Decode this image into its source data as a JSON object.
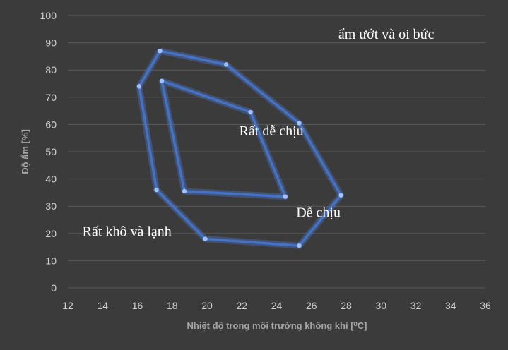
{
  "chart_data": {
    "type": "scatter",
    "xlabel": "Nhiệt độ trong môi trường không khí [⁰C]",
    "ylabel": "Độ ẩm  [%]",
    "xlim": [
      12,
      36
    ],
    "ylim": [
      0,
      100
    ],
    "xticks": [
      12,
      14,
      16,
      18,
      20,
      22,
      24,
      26,
      28,
      30,
      32,
      34,
      36
    ],
    "yticks": [
      0,
      10,
      20,
      30,
      40,
      50,
      60,
      70,
      80,
      90,
      100
    ],
    "grid": "horizontal",
    "colors": {
      "background": "#3b3b3b",
      "series": "#4472c4",
      "point": "#9fc2ff",
      "grid": "#5a5a5a"
    },
    "series": [
      {
        "x": [
          17.3,
          21.1,
          25.3,
          27.7,
          25.3,
          19.9,
          17.1,
          16.1,
          17.3
        ],
        "y": [
          87,
          82,
          60.5,
          34,
          15.5,
          18,
          36,
          74,
          87
        ]
      },
      {
        "x": [
          17.4,
          22.5,
          24.5,
          18.7,
          17.4
        ],
        "y": [
          76,
          64.5,
          33.5,
          35.5,
          76
        ]
      }
    ],
    "annotations": [
      {
        "text": "ẩm ướt và oi bức",
        "x": 30.3,
        "y": 91.5
      },
      {
        "text": "Rất dễ chịu",
        "x": 23.7,
        "y": 56
      },
      {
        "text": "Dễ chịu",
        "x": 26.4,
        "y": 26
      },
      {
        "text": "Rất khô và lạnh",
        "x": 15.4,
        "y": 19
      }
    ]
  }
}
